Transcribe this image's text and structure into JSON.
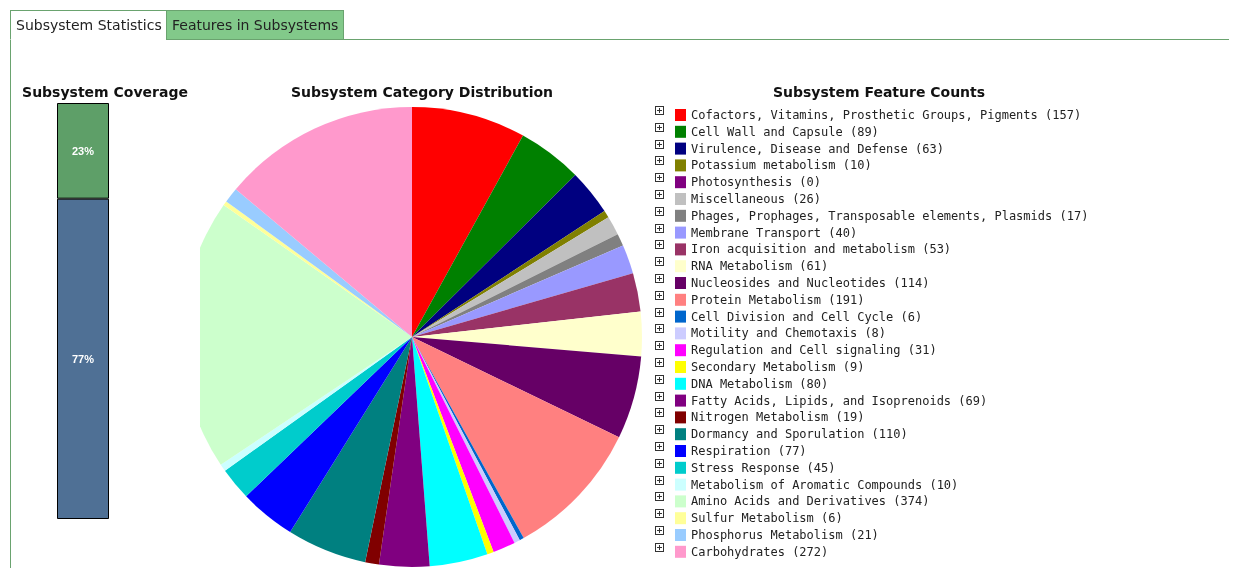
{
  "chart_data": [
    {
      "type": "bar",
      "title": "Subsystem Coverage",
      "stacked": true,
      "categories": [
        null
      ],
      "annotations": [
        "Subsystem Statistics",
        "Features in Subsystems"
      ],
      "series": [
        {
          "color": "#4f7095",
          "values": [
            77
          ],
          "value_labels": [
            "77%"
          ]
        },
        {
          "color": "#5e9f68",
          "values": [
            23
          ],
          "value_labels": [
            "23%"
          ]
        }
      ]
    },
    {
      "type": "pie",
      "title": "Subsystem Category Distribution",
      "legend_title": "Subsystem Feature Counts",
      "legend": "right",
      "categories": [
        "Cofactors, Vitamins, Prosthetic Groups, Pigments (157)",
        "Cell Wall and Capsule (89)",
        "Virulence, Disease and Defense (63)",
        "Potassium metabolism (10)",
        "Photosynthesis (0)",
        "Miscellaneous (26)",
        "Phages, Prophages, Transposable elements, Plasmids (17)",
        "Membrane Transport (40)",
        "Iron acquisition and metabolism (53)",
        "RNA Metabolism (61)",
        "Nucleosides and Nucleotides (114)",
        "Protein Metabolism (191)",
        "Cell Division and Cell Cycle (6)",
        "Motility and Chemotaxis (8)",
        "Regulation and Cell signaling (31)",
        "Secondary Metabolism (9)",
        "DNA Metabolism (80)",
        "Fatty Acids, Lipids, and Isoprenoids (69)",
        "Nitrogen Metabolism (19)",
        "Dormancy and Sporulation (110)",
        "Respiration (77)",
        "Stress Response (45)",
        "Metabolism of Aromatic Compounds (10)",
        "Amino Acids and Derivatives (374)",
        "Sulfur Metabolism (6)",
        "Phosphorus Metabolism (21)",
        "Carbohydrates (272)"
      ],
      "values": [
        157,
        89,
        63,
        10,
        0,
        26,
        17,
        40,
        53,
        61,
        114,
        191,
        6,
        8,
        31,
        9,
        80,
        69,
        19,
        110,
        77,
        45,
        10,
        374,
        6,
        21,
        272
      ],
      "colors": [
        "#ff0000",
        "#008000",
        "#000080",
        "#808000",
        "#800080",
        "#c0c0c0",
        "#808080",
        "#9999ff",
        "#993366",
        "#ffffcc",
        "#660066",
        "#ff8080",
        "#0066cc",
        "#ccccff",
        "#ff00ff",
        "#ffff00",
        "#00ffff",
        "#800080",
        "#800000",
        "#008080",
        "#0000ff",
        "#00cccc",
        "#ccffff",
        "#ccffcc",
        "#ffff99",
        "#99ccff",
        "#ff99cc"
      ]
    }
  ]
}
